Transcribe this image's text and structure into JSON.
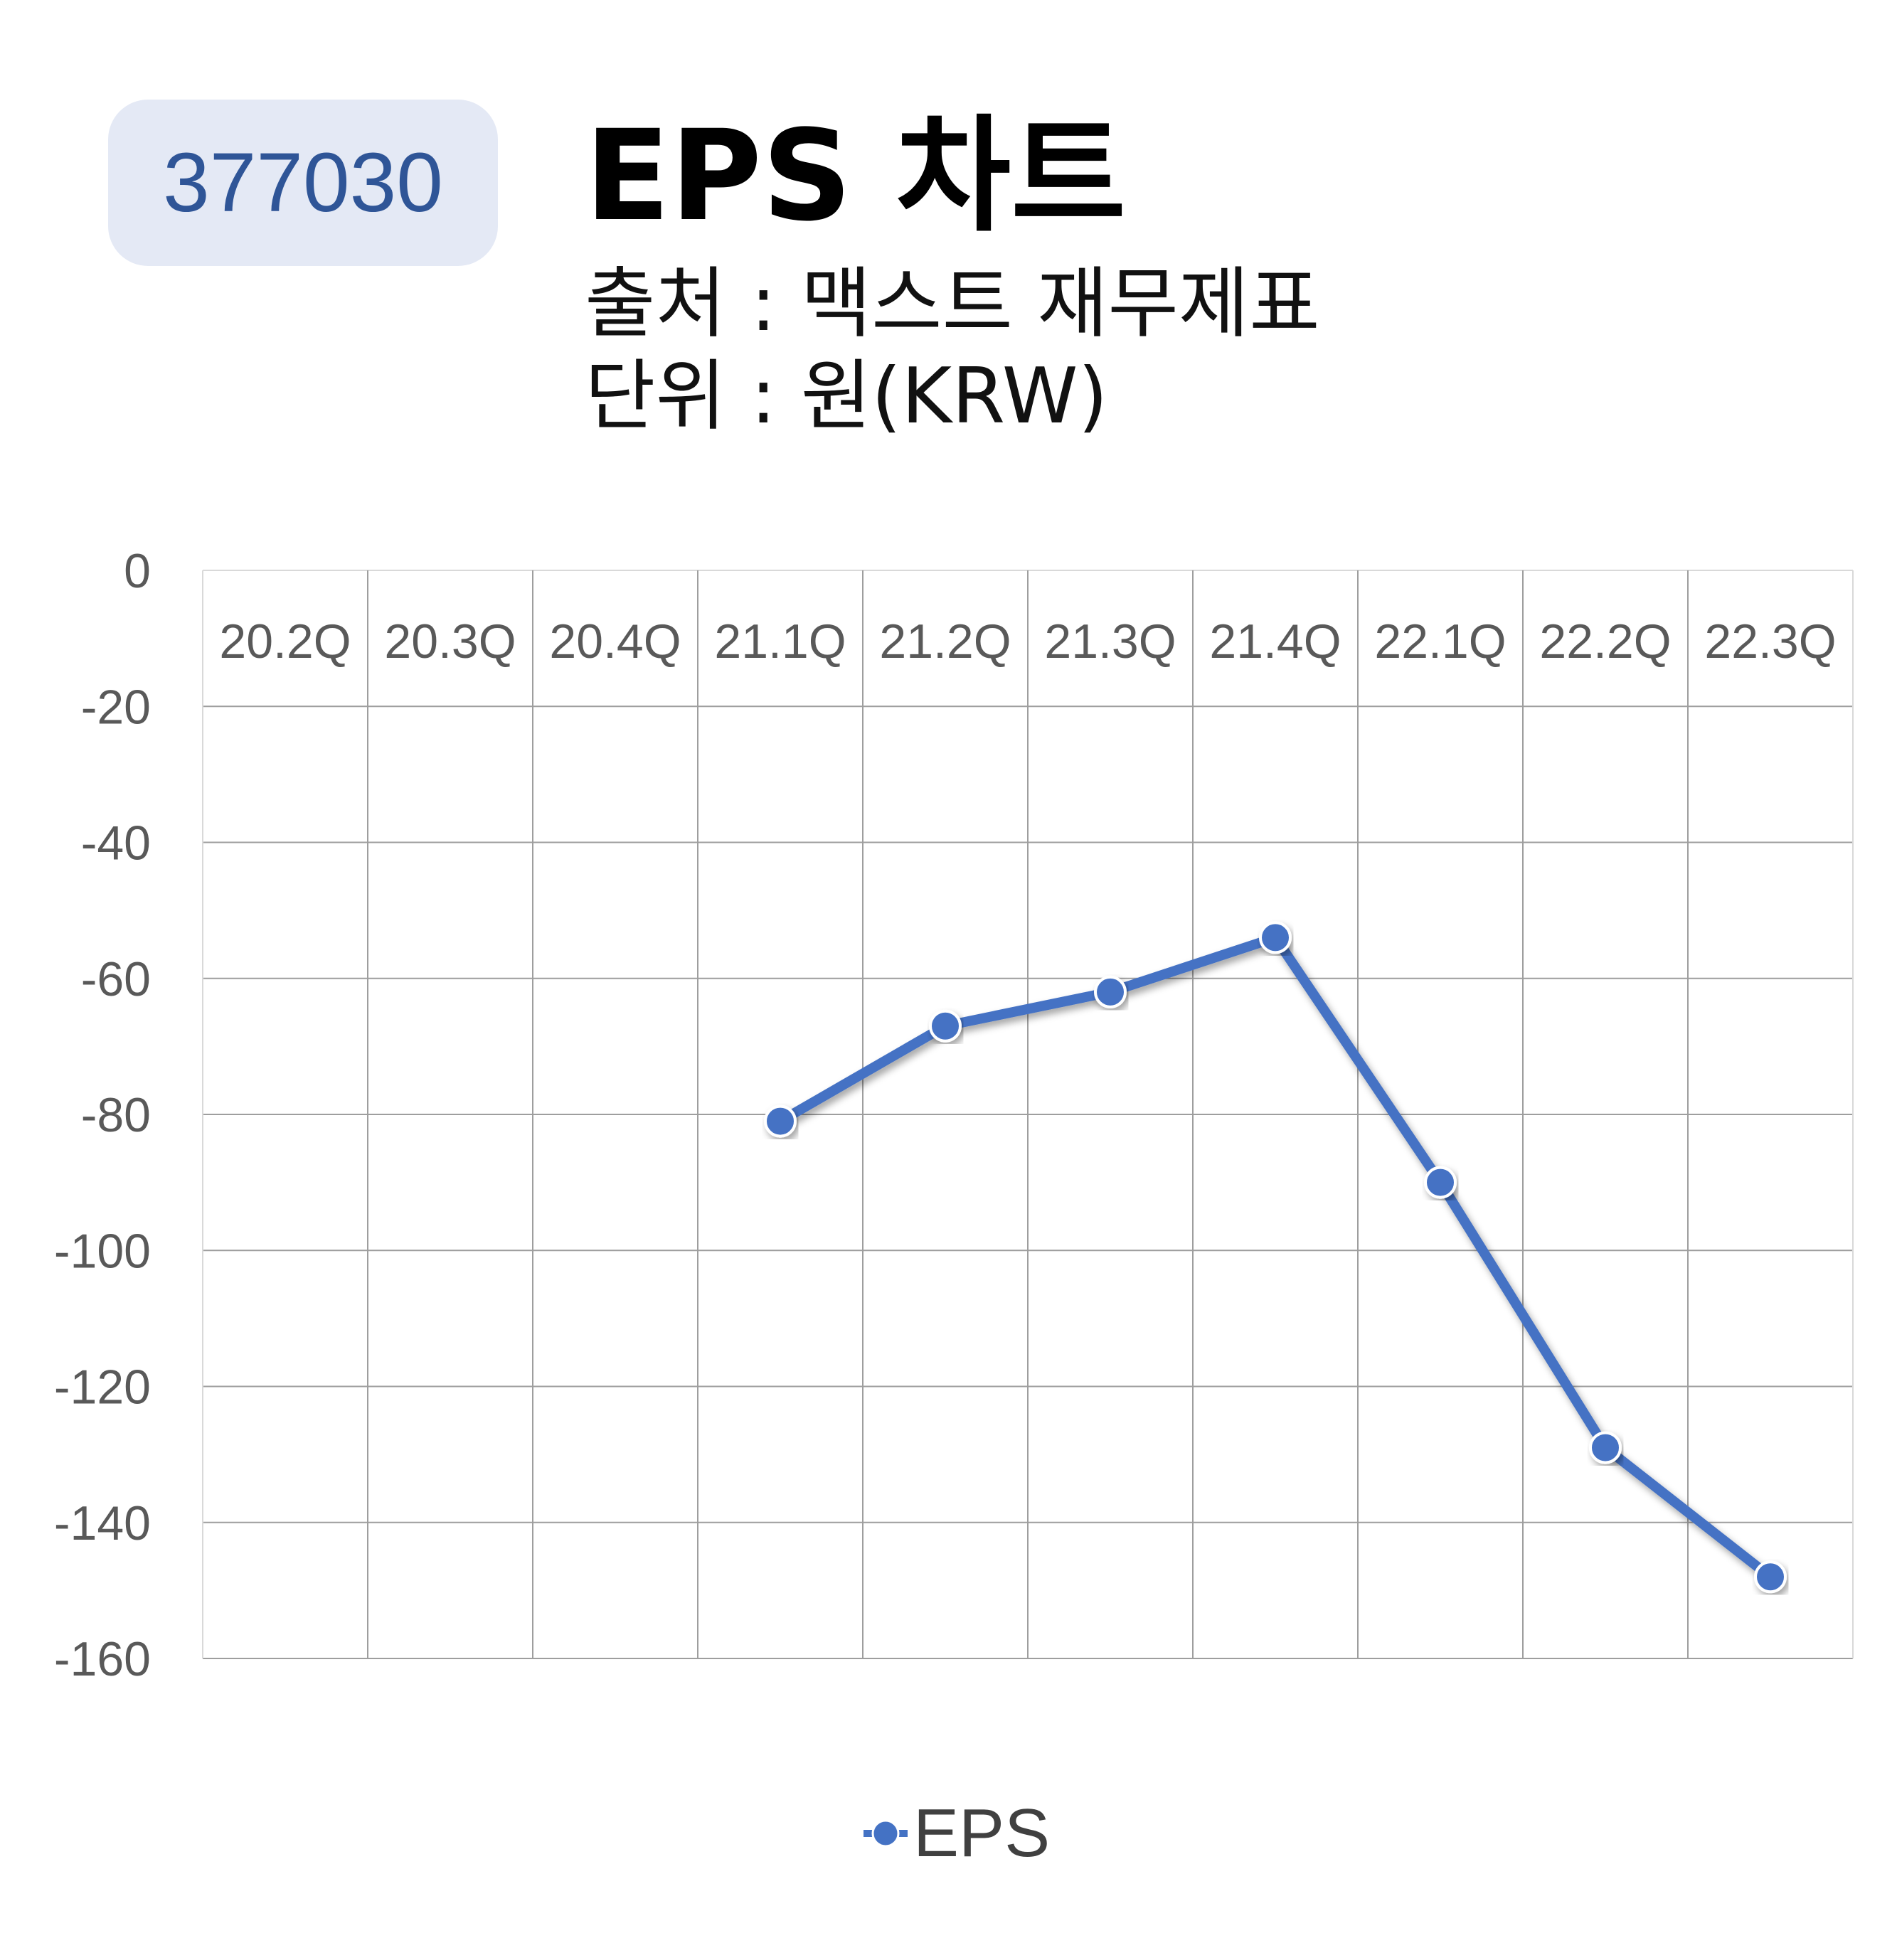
{
  "header": {
    "ticker": "377030",
    "title": "EPS 차트",
    "source": "출처 : 맥스트 재무제표",
    "unit": "단위 : 원(KRW)"
  },
  "colors": {
    "badge_bg": "#e4e9f5",
    "badge_text": "#2f5597",
    "series_line": "#4472c4",
    "grid": "#9e9e9e",
    "tick_text": "#595959"
  },
  "chart_data": {
    "type": "line",
    "title": "",
    "xlabel": "",
    "ylabel": "",
    "categories": [
      "20.2Q",
      "20.3Q",
      "20.4Q",
      "21.1Q",
      "21.2Q",
      "21.3Q",
      "21.4Q",
      "22.1Q",
      "22.2Q",
      "22.3Q"
    ],
    "series": [
      {
        "name": "EPS",
        "values": [
          null,
          null,
          null,
          -81,
          -67,
          -62,
          -54,
          -90,
          -129,
          -148
        ]
      }
    ],
    "ylim": [
      -160,
      0
    ],
    "yticks": [
      0,
      -20,
      -40,
      -60,
      -80,
      -100,
      -120,
      -140,
      -160
    ],
    "grid": true,
    "x_axis_position": "top",
    "legend": {
      "position": "bottom",
      "entries": [
        "EPS"
      ]
    }
  }
}
